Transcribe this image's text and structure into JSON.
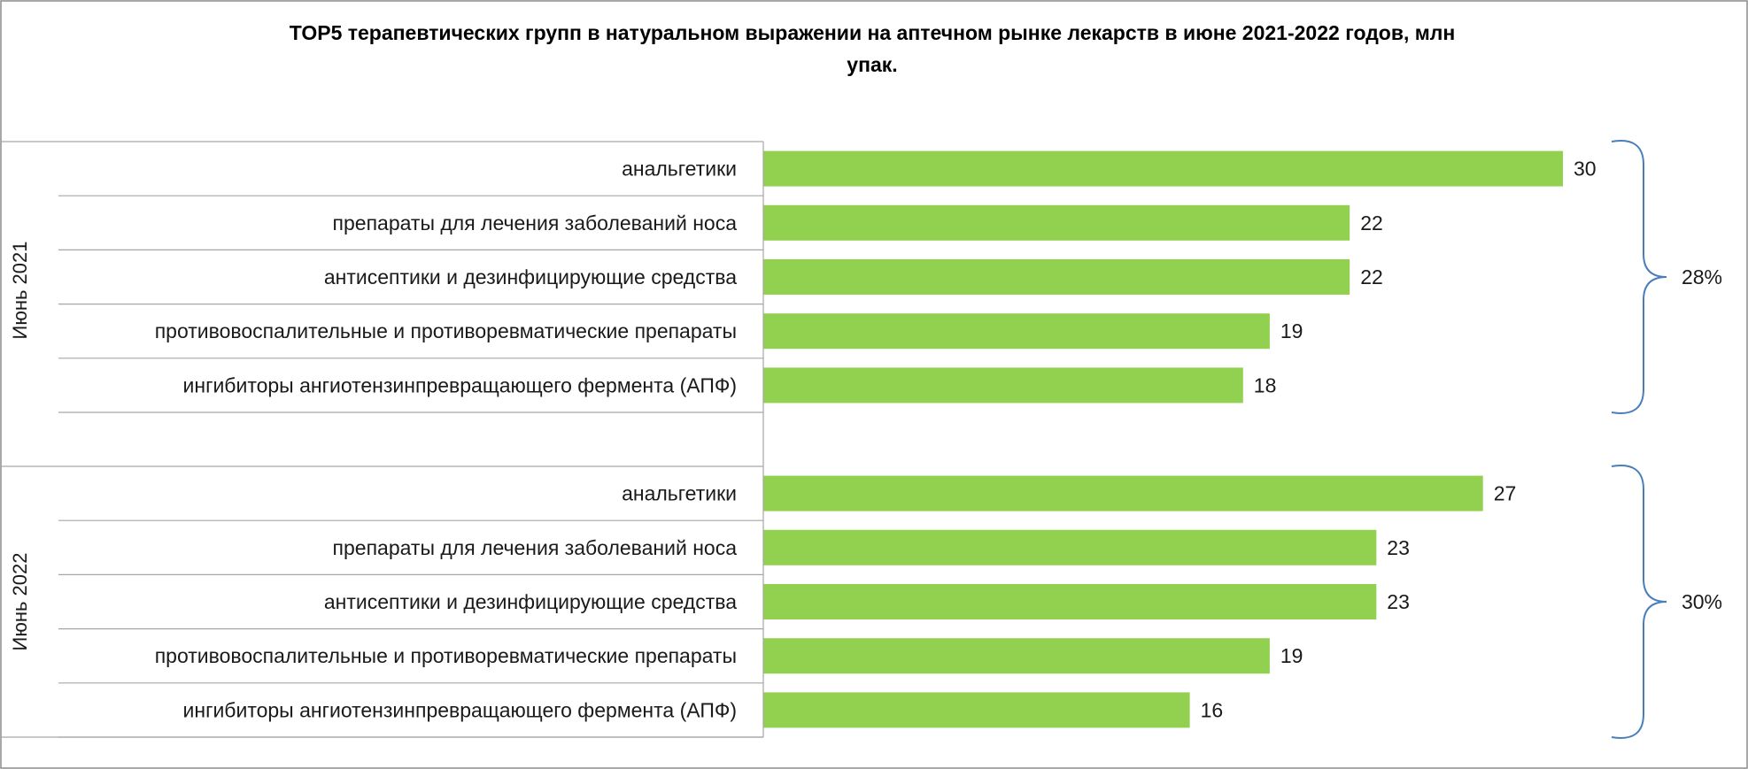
{
  "chart_data": {
    "type": "bar",
    "orientation": "horizontal",
    "title": "TOP5 терапевтических групп в натуральном выражении на аптечном рынке лекарств в июне 2021-2022 годов, млн упак.",
    "title_lines": [
      "TOP5 терапевтических групп в натуральном выражении на аптечном рынке лекарств в июне 2021-2022 годов, млн",
      "упак."
    ],
    "xlabel": "",
    "ylabel": "",
    "xlim": [
      0,
      36
    ],
    "grid": false,
    "legend": "none",
    "bar_color": "#92d050",
    "bracket_color": "#4a7ebb",
    "groups": [
      {
        "label": "Июнь 2021",
        "categories": [
          "анальгетики",
          "препараты для лечения заболеваний носа",
          "антисептики и дезинфицирующие средства",
          "противовоспалительные и противоревматические препараты",
          "ингибиторы ангиотензинпревращающего фермента (АПФ)"
        ],
        "values": [
          30,
          22,
          22,
          19,
          18
        ],
        "share": "28%"
      },
      {
        "label": "Июнь 2022",
        "categories": [
          "анальгетики",
          "препараты для лечения заболеваний носа",
          "антисептики и дезинфицирующие средства",
          "противовоспалительные и противоревматические препараты",
          "ингибиторы ангиотензинпревращающего фермента (АПФ)"
        ],
        "values": [
          27,
          23,
          23,
          19,
          16
        ],
        "share": "30%"
      }
    ]
  }
}
